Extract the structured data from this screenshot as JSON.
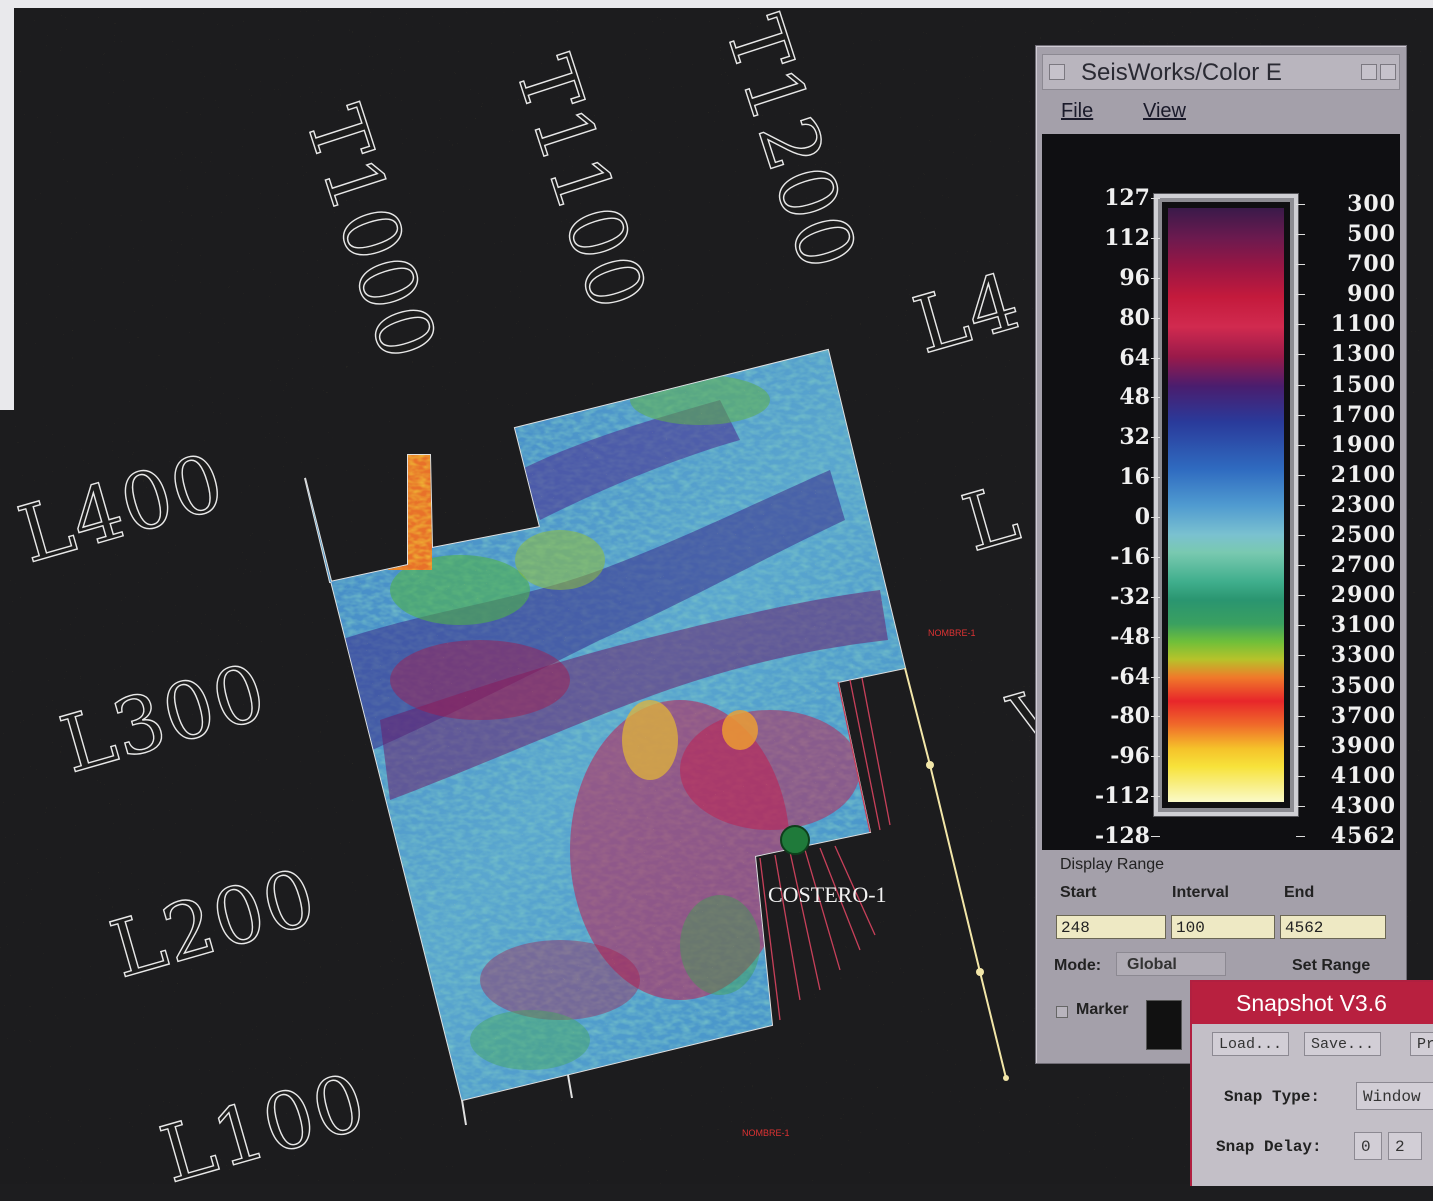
{
  "map": {
    "trace_labels": [
      "T1000",
      "T1100",
      "T1200"
    ],
    "line_labels": [
      "L400",
      "L300",
      "L200",
      "L100",
      "L4",
      "L",
      "V"
    ],
    "well": {
      "name": "COSTERO-1",
      "color": "#1f7a3a"
    },
    "small_tags": [
      "NOMBRE-1",
      "NOMBRE-1"
    ]
  },
  "colorbar_window": {
    "title": "SeisWorks/Color E",
    "menu": [
      "File",
      "View"
    ],
    "left_ticks": [
      "127",
      "112",
      "96",
      "80",
      "64",
      "48",
      "32",
      "16",
      "0",
      "-16",
      "-32",
      "-48",
      "-64",
      "-80",
      "-96",
      "-112",
      "-128"
    ],
    "right_ticks": [
      "300",
      "500",
      "700",
      "900",
      "1100",
      "1300",
      "1500",
      "1700",
      "1900",
      "2100",
      "2300",
      "2500",
      "2700",
      "2900",
      "3100",
      "3300",
      "3500",
      "3700",
      "3900",
      "4100",
      "4300",
      "4562"
    ],
    "display_range": {
      "section_label": "Display Range",
      "start_label": "Start",
      "interval_label": "Interval",
      "end_label": "End",
      "start_value": "248",
      "interval_value": "100",
      "end_value": "4562"
    },
    "mode_label": "Mode:",
    "mode_value": "Global",
    "set_range_label": "Set Range",
    "marker_label": "Marker"
  },
  "snapshot_window": {
    "title": "Snapshot V3.6",
    "buttons": [
      "Load...",
      "Save...",
      "Pr"
    ],
    "snap_type_label": "Snap Type:",
    "snap_type_value": "Window",
    "snap_delay_label": "Snap Delay:",
    "snap_delay_values": [
      "0",
      "2"
    ]
  }
}
